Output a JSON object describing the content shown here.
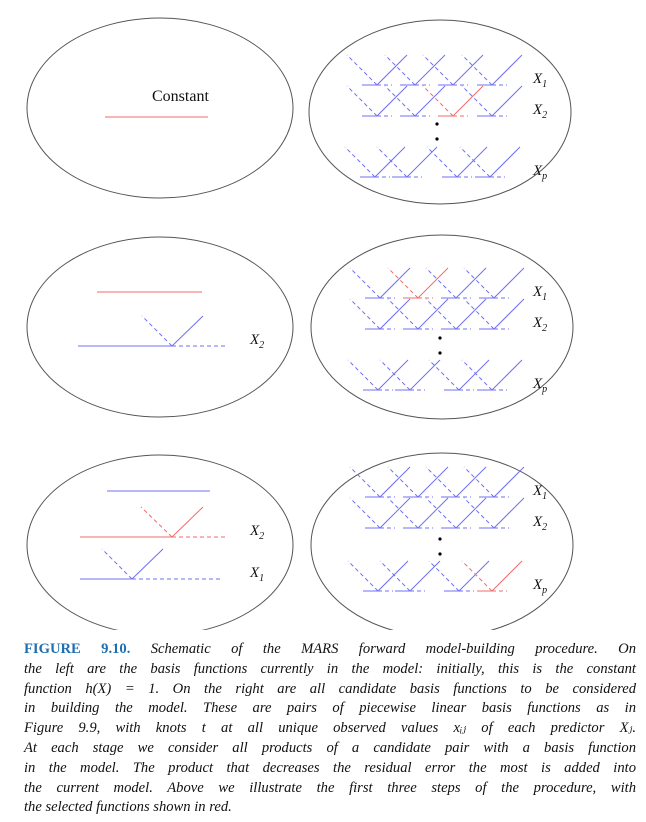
{
  "figure": {
    "constant_label": "Constant",
    "row_labels": {
      "x1": "X",
      "x1_sub": "1",
      "x2": "X",
      "x2_sub": "2",
      "xp": "X",
      "xp_sub": "p"
    },
    "colors": {
      "candidate": "#6f6ff5",
      "selected": "#f26b6b",
      "outline": "#555555"
    }
  },
  "caption": {
    "figure_number": "FIGURE 9.10.",
    "lines": [
      " Schematic of the MARS forward model-building procedure. On",
      "the left are the basis functions currently in the model: initially, this is the constant",
      "function h(X) = 1. On the right are all candidate basis functions to be considered",
      "in building the model. These are pairs of piecewise linear basis functions as in",
      "Figure 9.9, with knots t at all unique observed values xᵢⱼ of each predictor Xⱼ.",
      "At each stage we consider all products of a candidate pair with a basis function",
      "in the model. The product that decreases the residual error the most is added into",
      "the current model. Above we illustrate the first three steps of the procedure, with",
      "the selected functions shown in red."
    ]
  }
}
